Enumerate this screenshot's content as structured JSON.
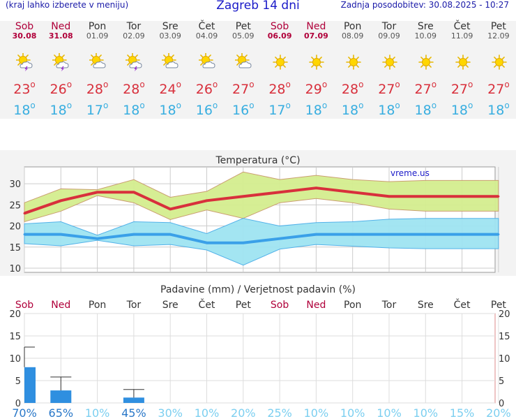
{
  "header": {
    "menu_hint": "(kraj lahko izberete v meniju)",
    "title": "Zagreb 14 dni",
    "updated": "Zadnja posodobitev: 30.08.2025 - 10:27"
  },
  "days": [
    {
      "name": "Sob",
      "date": "30.08",
      "weekend": true,
      "icon": "sun-cloud-storm-icon",
      "tmax": "23",
      "tmin": "18"
    },
    {
      "name": "Ned",
      "date": "31.08",
      "weekend": true,
      "icon": "sun-cloud-storm-icon",
      "tmax": "26",
      "tmin": "18"
    },
    {
      "name": "Pon",
      "date": "01.09",
      "weekend": false,
      "icon": "sun-cloud-icon",
      "tmax": "28",
      "tmin": "17"
    },
    {
      "name": "Tor",
      "date": "02.09",
      "weekend": false,
      "icon": "sun-cloud-storm-icon",
      "tmax": "28",
      "tmin": "18"
    },
    {
      "name": "Sre",
      "date": "03.09",
      "weekend": false,
      "icon": "sun-cloud-icon",
      "tmax": "24",
      "tmin": "18"
    },
    {
      "name": "Čet",
      "date": "04.09",
      "weekend": false,
      "icon": "sun-cloud-icon",
      "tmax": "26",
      "tmin": "16"
    },
    {
      "name": "Pet",
      "date": "05.09",
      "weekend": false,
      "icon": "sun-cloud-icon",
      "tmax": "27",
      "tmin": "16"
    },
    {
      "name": "Sob",
      "date": "06.09",
      "weekend": true,
      "icon": "sun-icon",
      "tmax": "28",
      "tmin": "17"
    },
    {
      "name": "Ned",
      "date": "07.09",
      "weekend": true,
      "icon": "sun-icon",
      "tmax": "29",
      "tmin": "18"
    },
    {
      "name": "Pon",
      "date": "08.09",
      "weekend": false,
      "icon": "sun-icon",
      "tmax": "28",
      "tmin": "18"
    },
    {
      "name": "Tor",
      "date": "09.09",
      "weekend": false,
      "icon": "sun-icon",
      "tmax": "27",
      "tmin": "18"
    },
    {
      "name": "Sre",
      "date": "10.09",
      "weekend": false,
      "icon": "sun-icon",
      "tmax": "27",
      "tmin": "18"
    },
    {
      "name": "Čet",
      "date": "11.09",
      "weekend": false,
      "icon": "sun-icon",
      "tmax": "27",
      "tmin": "18"
    },
    {
      "name": "Pet",
      "date": "12.09",
      "weekend": false,
      "icon": "sun-icon",
      "tmax": "27",
      "tmin": "18"
    }
  ],
  "colors": {
    "weekend": "#b0003a",
    "tmax": "#d8303c",
    "tmin": "#38aee0",
    "bar": "#2f8fe0"
  },
  "chart_data": [
    {
      "type": "line",
      "title": "Temperatura (°C)",
      "watermark": "vreme.us",
      "ylim": [
        9,
        34
      ],
      "yticks": [
        10,
        15,
        20,
        25,
        30
      ],
      "grid": true,
      "categories": [
        "Sob",
        "Ned",
        "Pon",
        "Tor",
        "Sre",
        "Čet",
        "Pet",
        "Sob",
        "Ned",
        "Pon",
        "Tor",
        "Sre",
        "Čet",
        "Pet"
      ],
      "x": [
        0,
        1,
        2,
        3,
        4,
        5,
        6,
        7,
        8,
        9,
        10,
        11,
        12,
        13
      ],
      "series": [
        {
          "values": [
            23,
            26,
            28,
            28,
            24,
            26,
            27,
            28,
            29,
            28,
            27,
            27,
            27,
            27
          ]
        },
        {
          "values": [
            18,
            18,
            17,
            18,
            18,
            16,
            16,
            17,
            18,
            18,
            18,
            18,
            18,
            18
          ]
        }
      ],
      "bands": [
        {
          "upper": [
            25.5,
            28.8,
            28.6,
            31,
            26.8,
            28.2,
            32.8,
            31,
            32,
            31,
            30.5,
            30.8,
            30.8,
            30.8
          ],
          "lower": [
            21,
            23.5,
            27.2,
            25.5,
            21.5,
            23.8,
            21.8,
            25.5,
            26.5,
            25.5,
            24,
            23.5,
            23.5,
            23.5
          ]
        },
        {
          "upper": [
            20.5,
            21,
            17.8,
            21,
            20.8,
            18.2,
            21.8,
            20,
            20.8,
            21,
            21.6,
            21.8,
            21.8,
            21.8
          ],
          "lower": [
            15.8,
            15.3,
            16.6,
            15.3,
            15.6,
            14.3,
            10.7,
            14.5,
            15.6,
            15.2,
            14.8,
            14.6,
            14.6,
            14.6
          ]
        }
      ]
    },
    {
      "type": "bar",
      "title": "Padavine (mm) / Verjetnost padavin (%)",
      "ylim": [
        0,
        20
      ],
      "yticks": [
        0,
        5,
        10,
        15,
        20
      ],
      "grid": true,
      "categories": [
        "Sob",
        "Ned",
        "Pon",
        "Tor",
        "Sre",
        "Čet",
        "Pet",
        "Sob",
        "Ned",
        "Pon",
        "Tor",
        "Sre",
        "Čet",
        "Pet"
      ],
      "values": [
        8,
        2.8,
        0,
        1.2,
        0,
        0,
        0,
        0,
        0,
        0,
        0,
        0,
        0,
        0
      ],
      "error_max": [
        12.5,
        5.8,
        0,
        3,
        0,
        0,
        0,
        0,
        0,
        0,
        0,
        0,
        0,
        0
      ],
      "probability": [
        "70%",
        "65%",
        "10%",
        "45%",
        "30%",
        "10%",
        "20%",
        "25%",
        "10%",
        "10%",
        "10%",
        "10%",
        "15%",
        "20%"
      ]
    }
  ]
}
